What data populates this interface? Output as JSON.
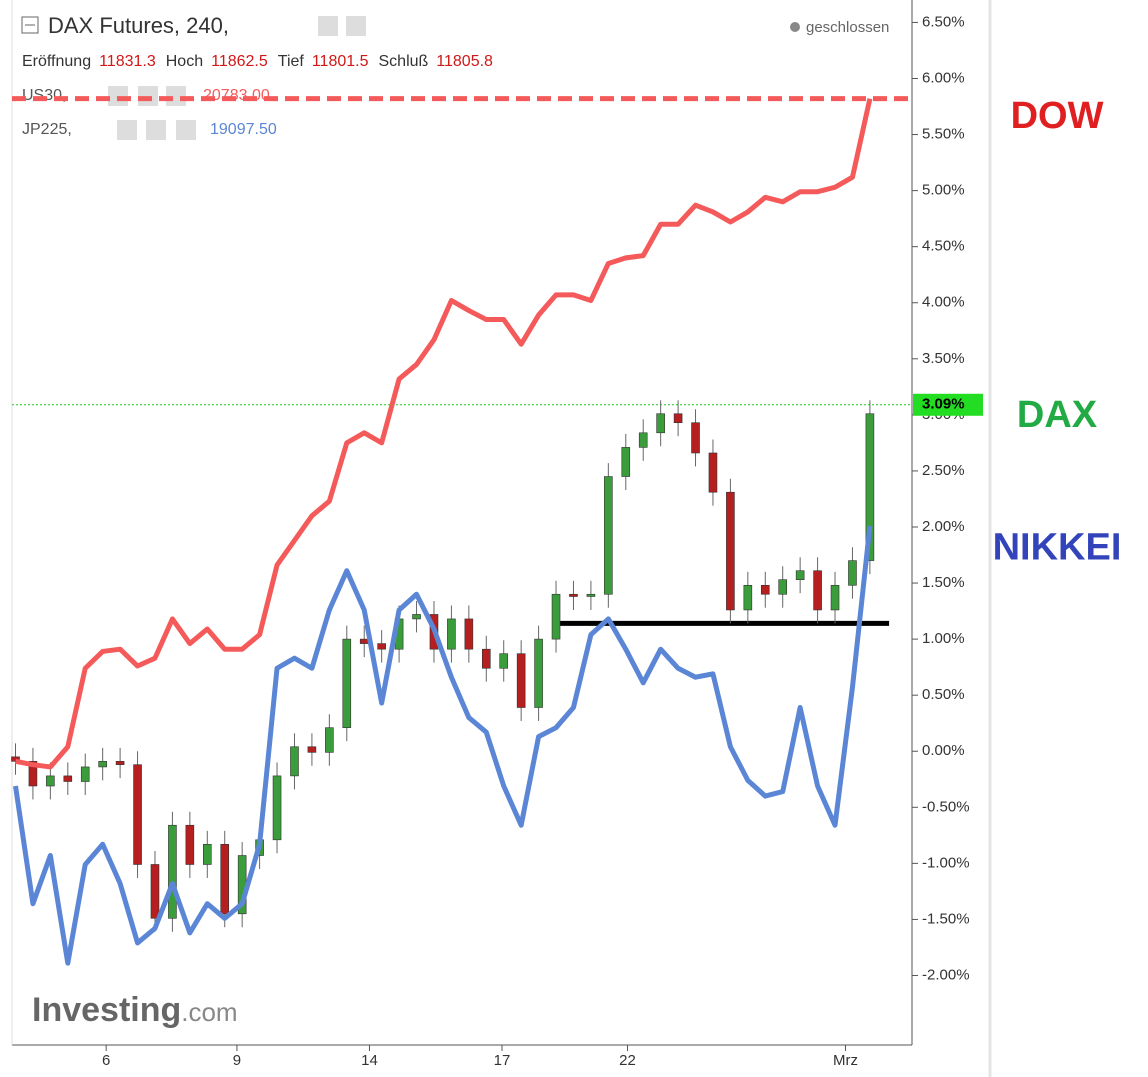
{
  "chart_data": {
    "type": "candlestick",
    "header": {
      "title": "DAX Futures, 240,",
      "status": "geschlossen",
      "fields": [
        {
          "label": "Eröffnung",
          "value": "11831.3"
        },
        {
          "label": "Hoch",
          "value": "11862.5"
        },
        {
          "label": "Tief",
          "value": "11801.5"
        },
        {
          "label": "Schluß",
          "value": "11805.8"
        }
      ]
    },
    "x": [
      0,
      1,
      2,
      3,
      4,
      5,
      6,
      7,
      8,
      9,
      10,
      11,
      12,
      13,
      14,
      15,
      16,
      17,
      18,
      19,
      20,
      21,
      22,
      23,
      24,
      25,
      26,
      27,
      28,
      29,
      30,
      31,
      32,
      33,
      34,
      35,
      36,
      37,
      38,
      39,
      40,
      41,
      42,
      43,
      44,
      45,
      46,
      47,
      48,
      49
    ],
    "xlim": [
      -0.2,
      51.3
    ],
    "xticks": [
      {
        "value": 5.2,
        "label": "6"
      },
      {
        "value": 12.7,
        "label": "9"
      },
      {
        "value": 20.3,
        "label": "14"
      },
      {
        "value": 27.9,
        "label": "17"
      },
      {
        "value": 35.1,
        "label": "22"
      },
      {
        "value": 47.6,
        "label": "Mrz"
      }
    ],
    "ylim": [
      -2.62,
      6.7
    ],
    "yticks": [
      {
        "value": 6.5,
        "label": "6.50%"
      },
      {
        "value": 6,
        "label": "6.00%"
      },
      {
        "value": 5.5,
        "label": "5.50%"
      },
      {
        "value": 5,
        "label": "5.00%"
      },
      {
        "value": 4.5,
        "label": "4.50%"
      },
      {
        "value": 4,
        "label": "4.00%"
      },
      {
        "value": 3.5,
        "label": "3.50%"
      },
      {
        "value": 3,
        "label": "3.00%"
      },
      {
        "value": 2.5,
        "label": "2.50%"
      },
      {
        "value": 2,
        "label": "2.00%"
      },
      {
        "value": 1.5,
        "label": "1.50%"
      },
      {
        "value": 1,
        "label": "1.00%"
      },
      {
        "value": 0.5,
        "label": "0.50%"
      },
      {
        "value": 0,
        "label": "0.00%"
      },
      {
        "value": -0.5,
        "label": "-0.50%"
      },
      {
        "value": -1,
        "label": "-1.00%"
      },
      {
        "value": -1.5,
        "label": "-1.50%"
      },
      {
        "value": -2,
        "label": "-2.00%"
      }
    ],
    "candles": {
      "up_color": "#3a9c3a",
      "down_color": "#b51f1f",
      "open": [
        -0.05,
        -0.09,
        -0.31,
        -0.22,
        -0.27,
        -0.14,
        -0.09,
        -0.12,
        -1.01,
        -1.49,
        -0.66,
        -1.01,
        -0.83,
        -1.45,
        -0.93,
        -0.79,
        -0.22,
        0.04,
        -0.01,
        0.21,
        1.0,
        0.96,
        0.91,
        1.18,
        1.22,
        0.91,
        1.18,
        0.91,
        0.74,
        0.87,
        0.39,
        1.0,
        1.4,
        1.38,
        1.4,
        2.45,
        2.71,
        2.84,
        3.01,
        2.93,
        2.66,
        2.31,
        1.26,
        1.48,
        1.4,
        1.53,
        1.61,
        1.26,
        1.48,
        1.7
      ],
      "high": [
        0.07,
        0.03,
        -0.1,
        -0.1,
        -0.02,
        0.03,
        0.03,
        0.0,
        -0.89,
        -0.54,
        -0.54,
        -0.71,
        -0.71,
        -0.81,
        -0.67,
        -0.1,
        0.16,
        0.16,
        0.33,
        1.12,
        1.12,
        1.08,
        1.3,
        1.34,
        1.34,
        1.3,
        1.3,
        1.03,
        0.99,
        0.99,
        1.12,
        1.52,
        1.52,
        1.52,
        2.57,
        2.83,
        2.96,
        3.13,
        3.13,
        3.05,
        2.78,
        2.43,
        1.6,
        1.6,
        1.65,
        1.73,
        1.73,
        1.6,
        1.82,
        3.13
      ],
      "low": [
        -0.21,
        -0.43,
        -0.43,
        -0.39,
        -0.39,
        -0.26,
        -0.24,
        -1.13,
        -1.61,
        -1.61,
        -1.13,
        -1.13,
        -1.57,
        -1.57,
        -1.05,
        -0.91,
        -0.34,
        -0.13,
        -0.13,
        0.09,
        0.84,
        0.79,
        0.79,
        1.06,
        0.79,
        0.79,
        0.79,
        0.62,
        0.62,
        0.27,
        0.27,
        0.88,
        1.26,
        1.26,
        1.28,
        2.33,
        2.59,
        2.72,
        2.81,
        2.54,
        2.19,
        1.14,
        1.14,
        1.28,
        1.28,
        1.41,
        1.14,
        1.14,
        1.36,
        1.58
      ],
      "close": [
        -0.09,
        -0.31,
        -0.22,
        -0.27,
        -0.14,
        -0.09,
        -0.12,
        -1.01,
        -1.49,
        -0.66,
        -1.01,
        -0.83,
        -1.45,
        -0.93,
        -0.79,
        -0.22,
        0.04,
        -0.01,
        0.21,
        1.0,
        0.96,
        0.91,
        1.18,
        1.22,
        0.91,
        1.18,
        0.91,
        0.74,
        0.87,
        0.39,
        1.0,
        1.4,
        1.38,
        1.4,
        2.45,
        2.71,
        2.84,
        3.01,
        2.93,
        2.66,
        2.31,
        1.26,
        1.48,
        1.4,
        1.53,
        1.61,
        1.26,
        1.48,
        1.7,
        3.01
      ]
    },
    "series": [
      {
        "name": "US30,",
        "value_label": "20783.00",
        "color": "#f55a5a",
        "values": [
          -0.09,
          -0.12,
          -0.14,
          0.04,
          0.74,
          0.89,
          0.91,
          0.76,
          0.83,
          1.18,
          0.96,
          1.09,
          0.91,
          0.91,
          1.04,
          1.66,
          1.88,
          2.1,
          2.23,
          2.75,
          2.84,
          2.75,
          3.32,
          3.45,
          3.67,
          4.02,
          3.93,
          3.85,
          3.85,
          3.63,
          3.89,
          4.07,
          4.07,
          4.02,
          4.35,
          4.4,
          4.42,
          4.7,
          4.7,
          4.87,
          4.81,
          4.72,
          4.81,
          4.94,
          4.9,
          4.99,
          4.99,
          5.03,
          5.12,
          5.82
        ]
      },
      {
        "name": "JP225,",
        "value_label": "19097.50",
        "color": "#5b86d6",
        "values": [
          -0.31,
          -1.36,
          -0.93,
          -1.89,
          -1.01,
          -0.83,
          -1.18,
          -1.71,
          -1.58,
          -1.18,
          -1.62,
          -1.36,
          -1.49,
          -1.36,
          -0.83,
          0.74,
          0.83,
          0.74,
          1.26,
          1.61,
          1.26,
          0.43,
          1.26,
          1.4,
          1.09,
          0.66,
          0.3,
          0.17,
          -0.31,
          -0.66,
          0.13,
          0.21,
          0.39,
          1.04,
          1.18,
          0.91,
          0.61,
          0.91,
          0.74,
          0.66,
          0.69,
          0.04,
          -0.26,
          -0.4,
          -0.36,
          0.39,
          -0.31,
          -0.66,
          0.57,
          2.01
        ]
      }
    ],
    "reference_lines": [
      {
        "value": 5.82,
        "color": "#f55a5a",
        "style": "dashed"
      },
      {
        "value": 3.09,
        "color": "#22cc22",
        "style": "dotted",
        "label": "3.09%"
      },
      {
        "value": 1.14,
        "color": "#000000",
        "style": "solid",
        "x": [
          30.8,
          50.1
        ]
      }
    ],
    "annotations": [
      {
        "text": "DOW",
        "color": "#e02020",
        "y": 5.65
      },
      {
        "text": "DAX",
        "color": "#22aa44",
        "y": 2.98
      },
      {
        "text": "NIKKEI",
        "color": "#3344bb",
        "y": 1.8
      }
    ],
    "watermark": {
      "brand": "Investing",
      "suffix": ".com"
    }
  }
}
